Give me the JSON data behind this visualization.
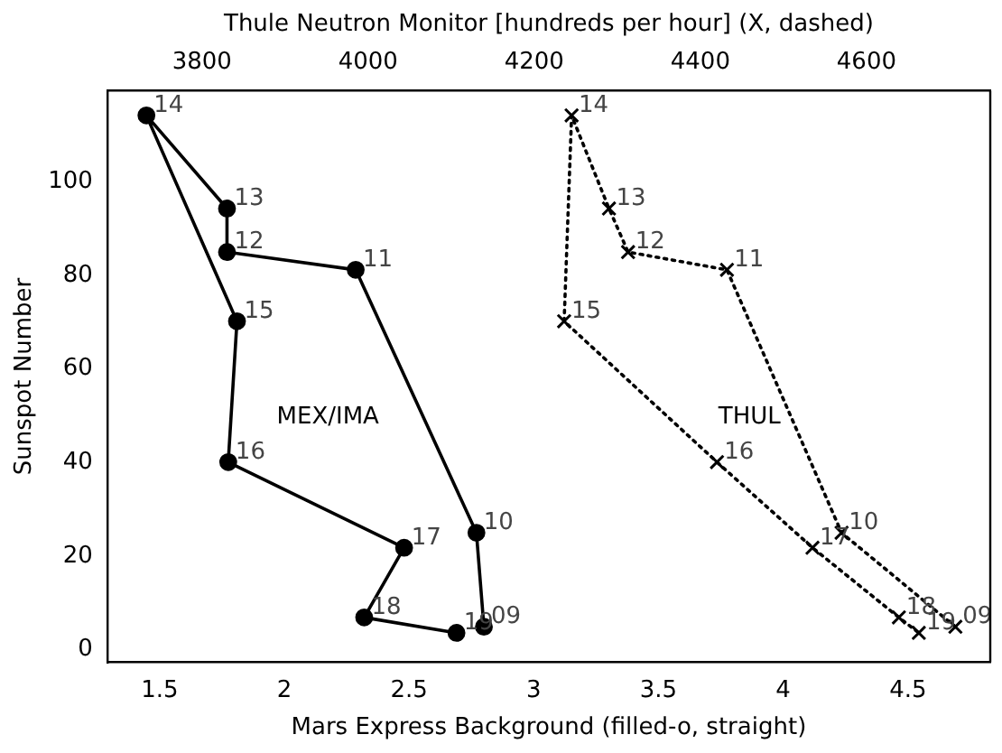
{
  "chart_data": {
    "type": "line",
    "xlabel": "Mars Express Background (filled-o, straight)",
    "x2label": "Thule Neutron Monitor [hundreds per hour] (X, dashed)",
    "ylabel": "Sunspot Number",
    "xlim": [
      1.29,
      4.83
    ],
    "xticks": [
      1.5,
      2.0,
      2.5,
      3.0,
      3.5,
      4.0,
      4.5
    ],
    "x2lim": [
      3686,
      4749
    ],
    "x2ticks": [
      3800,
      4000,
      4200,
      4400,
      4600
    ],
    "ylim": [
      -2.7,
      119.5
    ],
    "yticks": [
      0,
      20,
      40,
      60,
      80,
      100
    ],
    "grid": false,
    "legend": false,
    "series": [
      {
        "name": "MEX/IMA",
        "color": "#000000",
        "marker": "circle",
        "line_style": "solid",
        "x": [
          2.8,
          2.77,
          2.286,
          1.77,
          1.77,
          1.447,
          1.81,
          1.775,
          2.48,
          2.32,
          2.69
        ],
        "values": [
          4.9,
          25.0,
          81.2,
          85.0,
          94.3,
          114.2,
          70.2,
          40.1,
          21.8,
          6.9,
          3.6
        ]
      },
      {
        "name": "THUL",
        "color": "#000000",
        "marker": "cross",
        "line_style": "dotted",
        "axis": "x2",
        "x": [
          4707,
          4570,
          4432,
          4313,
          4290,
          4245,
          4236,
          4420,
          4535,
          4639,
          4663
        ],
        "values": [
          4.9,
          25.0,
          81.2,
          85.0,
          94.3,
          114.2,
          70.2,
          40.1,
          21.8,
          6.9,
          3.6
        ]
      }
    ],
    "annotations": [
      {
        "text": "09",
        "x": 2.8,
        "y": 4.9
      },
      {
        "text": "10",
        "x": 2.77,
        "y": 25.0
      },
      {
        "text": "11",
        "x": 2.286,
        "y": 81.2
      },
      {
        "text": "12",
        "x": 1.77,
        "y": 85.0
      },
      {
        "text": "13",
        "x": 1.77,
        "y": 94.3
      },
      {
        "text": "14",
        "x": 1.447,
        "y": 114.2
      },
      {
        "text": "15",
        "x": 1.81,
        "y": 70.2
      },
      {
        "text": "16",
        "x": 1.775,
        "y": 40.1
      },
      {
        "text": "17",
        "x": 2.48,
        "y": 21.8
      },
      {
        "text": "18",
        "x": 2.32,
        "y": 6.9
      },
      {
        "text": "19",
        "x": 2.69,
        "y": 3.6
      },
      {
        "text": "09",
        "x": 4.69,
        "y": 4.9
      },
      {
        "text": "10",
        "x": 4.234,
        "y": 25.0
      },
      {
        "text": "11",
        "x": 3.774,
        "y": 81.2
      },
      {
        "text": "12",
        "x": 3.378,
        "y": 85.0
      },
      {
        "text": "13",
        "x": 3.301,
        "y": 94.3
      },
      {
        "text": "14",
        "x": 3.151,
        "y": 114.2
      },
      {
        "text": "15",
        "x": 3.122,
        "y": 70.2
      },
      {
        "text": "16",
        "x": 3.734,
        "y": 40.1
      },
      {
        "text": "17",
        "x": 4.117,
        "y": 21.8
      },
      {
        "text": "18",
        "x": 4.464,
        "y": 6.9
      },
      {
        "text": "19",
        "x": 4.544,
        "y": 3.6
      }
    ]
  }
}
